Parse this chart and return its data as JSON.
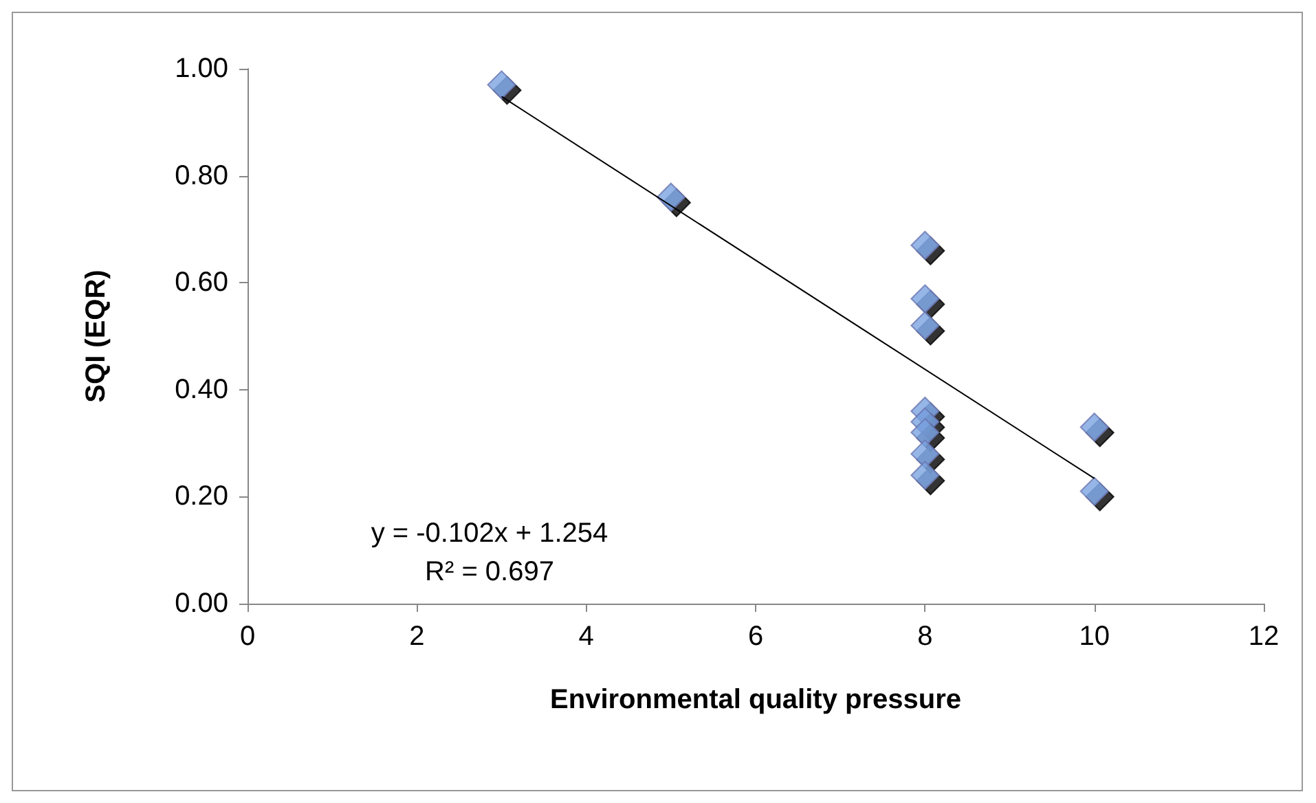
{
  "chart_data": {
    "type": "scatter",
    "xlabel": "Environmental quality pressure",
    "ylabel": "SQI (EQR)",
    "xlim": [
      0,
      12
    ],
    "xticks": [
      0,
      2,
      4,
      6,
      8,
      10,
      12
    ],
    "ylim": [
      0,
      1
    ],
    "yticks": [
      {
        "value": 0,
        "label": "0.00"
      },
      {
        "value": 0.2,
        "label": "0.20"
      },
      {
        "value": 0.4,
        "label": "0.40"
      },
      {
        "value": 0.6,
        "label": "0.60"
      },
      {
        "value": 0.8,
        "label": "0.80"
      },
      {
        "value": 1,
        "label": "1.00"
      }
    ],
    "grid": false,
    "series": [
      {
        "marker": "diamond",
        "color": "#7ba4e0",
        "x": [
          3,
          5,
          8,
          8,
          8,
          8,
          8,
          8,
          8,
          8,
          10,
          10
        ],
        "values": [
          0.97,
          0.76,
          0.67,
          0.57,
          0.52,
          0.36,
          0.34,
          0.32,
          0.28,
          0.24,
          0.33,
          0.21
        ]
      },
      {
        "type": "line",
        "marker": "none",
        "color": "#000000",
        "x": [
          3,
          10
        ],
        "values": [
          0.948,
          0.234
        ]
      }
    ],
    "annotations": [
      "y = -0.102x + 1.254",
      "R² = 0.697"
    ]
  }
}
